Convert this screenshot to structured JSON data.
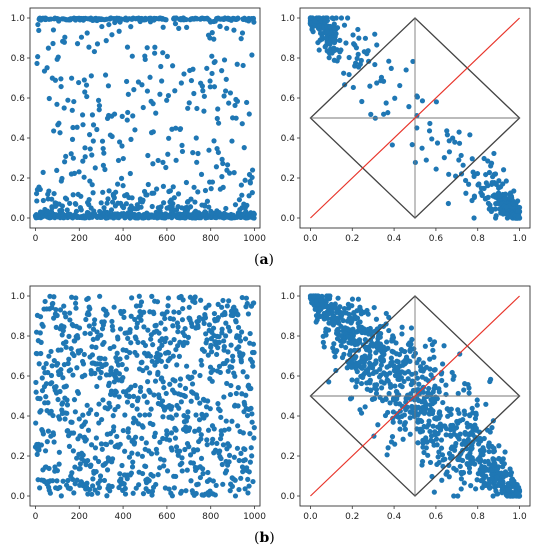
{
  "captions": {
    "a": "a",
    "b": "b"
  },
  "chart_data": [
    {
      "id": "a-left",
      "type": "scatter",
      "xlim": [
        -25,
        1025
      ],
      "ylim": [
        -0.05,
        1.05
      ],
      "xticks": [
        0,
        200,
        400,
        600,
        800,
        1000
      ],
      "yticks": [
        0.0,
        0.2,
        0.4,
        0.6,
        0.8,
        1.0
      ],
      "point_color": "#1f77b4",
      "n_points": 1000,
      "description": "Values cluster near 0 and 1 with sparse points in between"
    },
    {
      "id": "a-right",
      "type": "scatter",
      "xlim": [
        -0.05,
        1.05
      ],
      "ylim": [
        -0.05,
        1.05
      ],
      "xticks": [
        0.0,
        0.2,
        0.4,
        0.6,
        0.8,
        1.0
      ],
      "yticks": [
        0.0,
        0.2,
        0.4,
        0.6,
        0.8,
        1.0
      ],
      "point_color": "#1f77b4",
      "n_points": 420,
      "overlays": {
        "diamond": [
          [
            0,
            0.5
          ],
          [
            0.5,
            1
          ],
          [
            1,
            0.5
          ],
          [
            0.5,
            0
          ]
        ],
        "diamond_color": "#444444",
        "crosshair_color": "#777777",
        "red_line": [
          [
            0,
            0
          ],
          [
            1,
            1
          ]
        ],
        "red_line_color": "#e8352b"
      }
    },
    {
      "id": "b-left",
      "type": "scatter",
      "xlim": [
        -25,
        1025
      ],
      "ylim": [
        -0.05,
        1.05
      ],
      "xticks": [
        0,
        200,
        400,
        600,
        800,
        1000
      ],
      "yticks": [
        0.0,
        0.2,
        0.4,
        0.6,
        0.8,
        1.0
      ],
      "point_color": "#1f77b4",
      "n_points": 1000,
      "description": "Values spread approximately uniformly over [0, 1]"
    },
    {
      "id": "b-right",
      "type": "scatter",
      "xlim": [
        -0.05,
        1.05
      ],
      "ylim": [
        -0.05,
        1.05
      ],
      "xticks": [
        0.0,
        0.2,
        0.4,
        0.6,
        0.8,
        1.0
      ],
      "yticks": [
        0.0,
        0.2,
        0.4,
        0.6,
        0.8,
        1.0
      ],
      "point_color": "#1f77b4",
      "n_points": 1000,
      "overlays": {
        "diamond": [
          [
            0,
            0.5
          ],
          [
            0.5,
            1
          ],
          [
            1,
            0.5
          ],
          [
            0.5,
            0
          ]
        ],
        "diamond_color": "#444444",
        "crosshair_color": "#777777",
        "red_line": [
          [
            0,
            0
          ],
          [
            1,
            1
          ]
        ],
        "red_line_color": "#e8352b"
      }
    }
  ]
}
